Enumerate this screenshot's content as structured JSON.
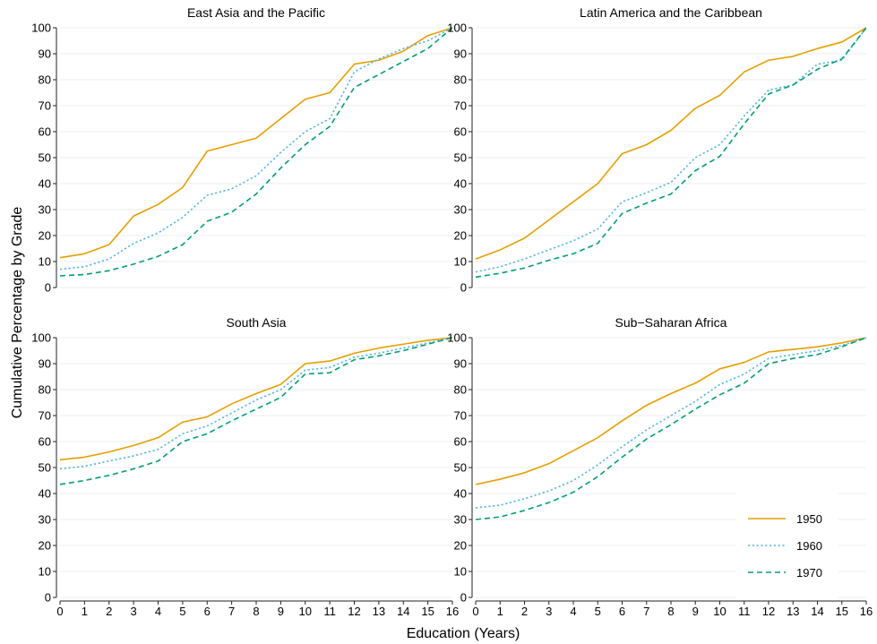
{
  "chart_data": {
    "type": "line",
    "xlabel": "Education (Years)",
    "ylabel": "Cumulative Percentage by Grade",
    "x_ticks": [
      "0",
      "1",
      "2",
      "3",
      "4",
      "5",
      "6",
      "7",
      "8",
      "9",
      "10",
      "11",
      "12",
      "13",
      "14",
      "15",
      "16"
    ],
    "y_ticks": [
      "0",
      "10",
      "20",
      "30",
      "40",
      "50",
      "60",
      "70",
      "80",
      "90",
      "100"
    ],
    "xlim": [
      0,
      16
    ],
    "ylim": [
      0,
      100
    ],
    "legend_position": "bottom-right",
    "colors": {
      "1950": "#E69F00",
      "1960": "#56B4E9",
      "1970": "#009E73"
    },
    "series_names": [
      "1950",
      "1960",
      "1970"
    ],
    "panels": [
      {
        "title": "East Asia and the Pacific",
        "x": [
          0,
          1,
          2,
          3,
          4,
          5,
          6,
          7,
          8,
          9,
          10,
          11,
          12,
          13,
          14,
          15,
          16
        ],
        "series": [
          {
            "name": "1950",
            "values": [
              11.5,
              13,
              16.5,
              27.5,
              32,
              38.5,
              52.5,
              55,
              57.5,
              65,
              72.5,
              75,
              86,
              87.5,
              91,
              97,
              100
            ]
          },
          {
            "name": "1960",
            "values": [
              7,
              8,
              11,
              17,
              21,
              27,
              35.5,
              38,
              43,
              52,
              60,
              65,
              83,
              88,
              92,
              95,
              100
            ]
          },
          {
            "name": "1970",
            "values": [
              4.5,
              5,
              6.5,
              9,
              12,
              16.5,
              25.5,
              29,
              36,
              46,
              55,
              62,
              77,
              82,
              87,
              92,
              100
            ]
          }
        ]
      },
      {
        "title": "Latin America and the Caribbean",
        "x": [
          0,
          1,
          2,
          3,
          4,
          5,
          6,
          7,
          8,
          9,
          10,
          11,
          12,
          13,
          14,
          15,
          16
        ],
        "series": [
          {
            "name": "1950",
            "values": [
              11,
              14.5,
              19,
              26,
              33,
              40,
              51.5,
              55,
              60.5,
              69,
              74,
              83,
              87.5,
              89,
              92,
              94.5,
              100
            ]
          },
          {
            "name": "1960",
            "values": [
              6,
              8,
              11,
              14.5,
              18,
              22.5,
              33,
              36.5,
              40.5,
              50,
              55,
              66,
              76,
              78,
              86,
              87.5,
              100
            ]
          },
          {
            "name": "1970",
            "values": [
              4,
              5.5,
              7.5,
              10.5,
              13,
              17,
              28.5,
              32.5,
              36,
              45,
              50.5,
              63,
              74.5,
              78,
              84,
              88,
              100
            ]
          }
        ]
      },
      {
        "title": "South Asia",
        "x": [
          0,
          1,
          2,
          3,
          4,
          5,
          6,
          7,
          8,
          9,
          10,
          11,
          12,
          13,
          14,
          15,
          16
        ],
        "series": [
          {
            "name": "1950",
            "values": [
              53,
              54,
              56,
              58.5,
              61.5,
              67.5,
              69.5,
              74.5,
              78.5,
              82,
              90,
              91,
              94,
              96,
              97.5,
              99,
              100
            ]
          },
          {
            "name": "1960",
            "values": [
              49.5,
              50.5,
              52.5,
              54.5,
              57,
              63,
              66,
              71,
              76,
              80,
              87.5,
              88.5,
              92.5,
              94,
              96,
              98,
              100
            ]
          },
          {
            "name": "1970",
            "values": [
              43.5,
              45,
              47,
              49.5,
              52.5,
              60,
              63,
              68,
              72.5,
              77,
              86,
              86.5,
              91.5,
              93,
              95,
              97.5,
              100
            ]
          }
        ]
      },
      {
        "title": "Sub−Saharan Africa",
        "x": [
          0,
          1,
          2,
          3,
          4,
          5,
          6,
          7,
          8,
          9,
          10,
          11,
          12,
          13,
          14,
          15,
          16
        ],
        "series": [
          {
            "name": "1950",
            "values": [
              43.5,
              45.5,
              48,
              51.5,
              56.5,
              61.5,
              68,
              74,
              78.5,
              82.5,
              88,
              90.5,
              94.5,
              95.5,
              96.5,
              98,
              100
            ]
          },
          {
            "name": "1960",
            "values": [
              34.5,
              35.5,
              38,
              41,
              45,
              51,
              58,
              64.5,
              70,
              75.5,
              82,
              86,
              92,
              93.5,
              95,
              97,
              100
            ]
          },
          {
            "name": "1970",
            "values": [
              30,
              31,
              33.5,
              36.5,
              40.5,
              46.5,
              54,
              61,
              66.5,
              72.5,
              78,
              82.5,
              90,
              92,
              93.5,
              96.5,
              100
            ]
          }
        ]
      }
    ]
  }
}
